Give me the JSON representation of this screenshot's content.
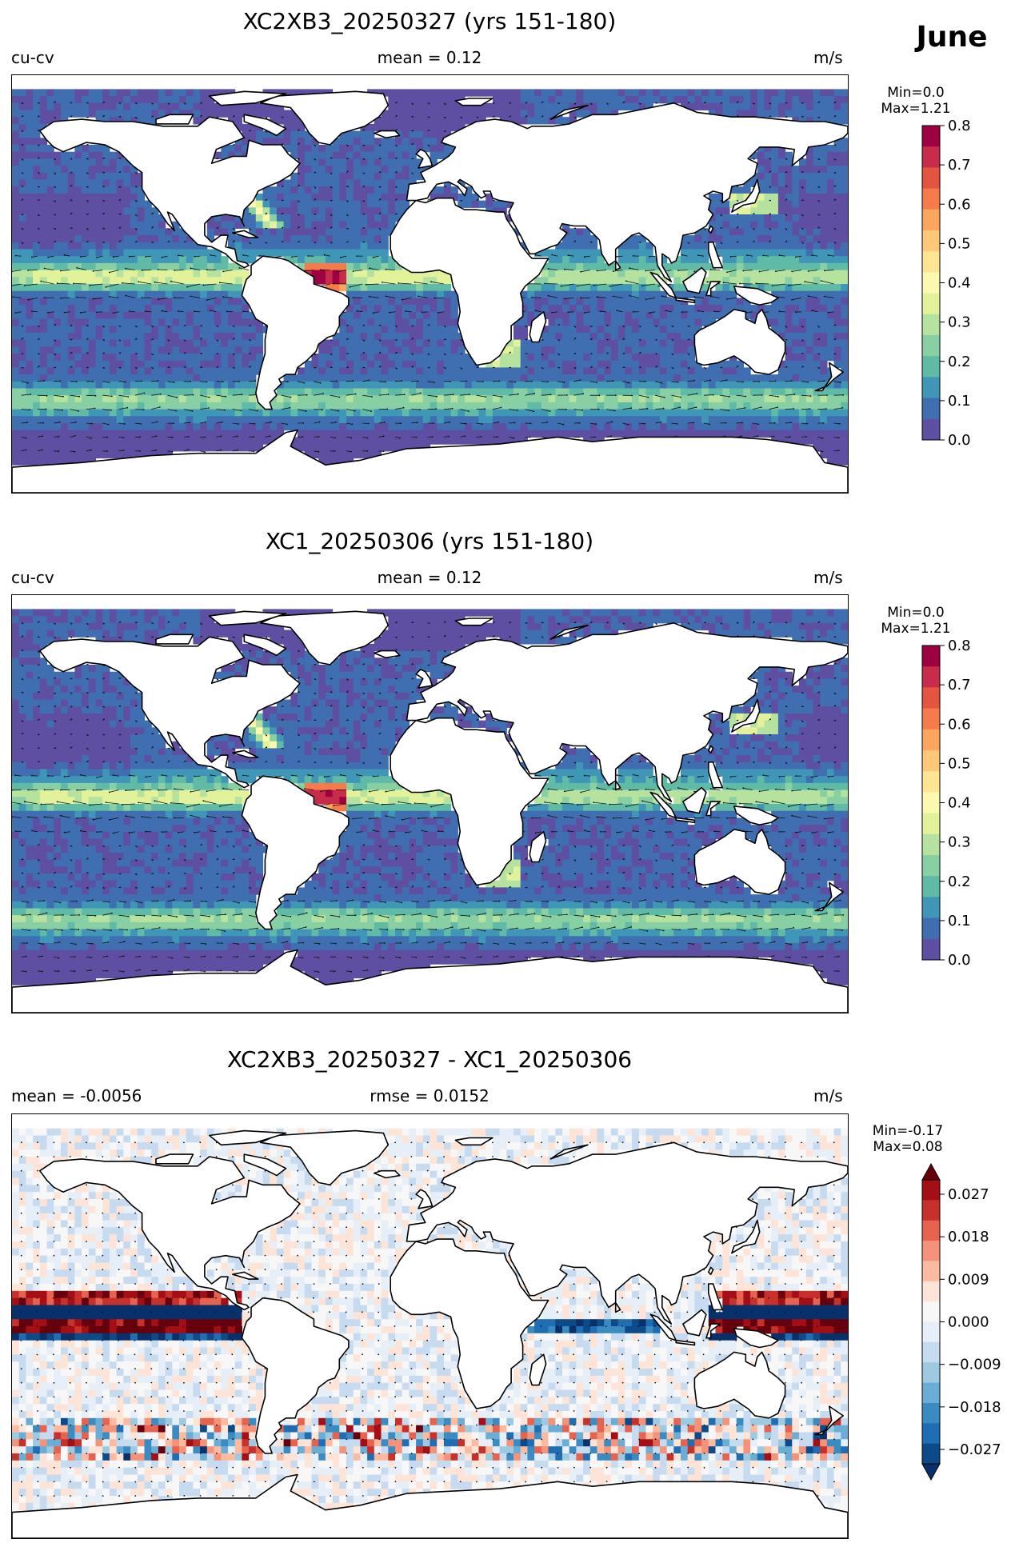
{
  "month": "June",
  "panels": [
    {
      "title": "XC2XB3_20250327 (yrs 151-180)",
      "left_label": "cu-cv",
      "center_label": "mean = 0.12",
      "right_label": "m/s",
      "minmax": {
        "min": "Min=0.0",
        "max": "Max=1.21"
      }
    },
    {
      "title": "XC1_20250306 (yrs 151-180)",
      "left_label": "cu-cv",
      "center_label": "mean = 0.12",
      "right_label": "m/s",
      "minmax": {
        "min": "Min=0.0",
        "max": "Max=1.21"
      }
    },
    {
      "title": "XC2XB3_20250327 - XC1_20250306",
      "left_label": "mean = -0.0056",
      "center_label": "rmse = 0.0152",
      "right_label": "m/s",
      "minmax": {
        "min": "Min=-0.17",
        "max": "Max=0.08"
      }
    }
  ],
  "colors": {
    "speed_scale": [
      "#5e4fa2",
      "#3f6fb0",
      "#3f96b7",
      "#5fbaa6",
      "#88cfa4",
      "#b6e29f",
      "#e1f29a",
      "#fbf8b0",
      "#fee593",
      "#fdc877",
      "#fca55d",
      "#f57c4a",
      "#e3553f",
      "#c92c4a",
      "#9e0142"
    ],
    "diff_scale": [
      "#08306b",
      "#0d4a8a",
      "#1f6eb3",
      "#3a8bc2",
      "#6aaed6",
      "#9ecae1",
      "#c6dbef",
      "#e6eff7",
      "#f7f7f7",
      "#fde4d6",
      "#fcbba1",
      "#f4937a",
      "#e5634f",
      "#c8302b",
      "#a30f15",
      "#67000d"
    ],
    "land": "#ffffff",
    "coast": "#000000"
  },
  "chart_data": [
    {
      "type": "heatmap",
      "title": "XC2XB3_20250327 (yrs 151-180)",
      "field": "cu-cv",
      "units": "m/s",
      "mean": 0.12,
      "min": 0.0,
      "max": 1.21,
      "colorbar": {
        "range": [
          0.0,
          0.8
        ],
        "ticks": [
          "0.0",
          "0.1",
          "0.2",
          "0.3",
          "0.4",
          "0.5",
          "0.6",
          "0.7",
          "0.8"
        ],
        "extend": "neither"
      },
      "overlay": "velocity-vectors",
      "projection": "equirectangular"
    },
    {
      "type": "heatmap",
      "title": "XC1_20250306 (yrs 151-180)",
      "field": "cu-cv",
      "units": "m/s",
      "mean": 0.12,
      "min": 0.0,
      "max": 1.21,
      "colorbar": {
        "range": [
          0.0,
          0.8
        ],
        "ticks": [
          "0.0",
          "0.1",
          "0.2",
          "0.3",
          "0.4",
          "0.5",
          "0.6",
          "0.7",
          "0.8"
        ],
        "extend": "neither"
      },
      "overlay": "velocity-vectors",
      "projection": "equirectangular"
    },
    {
      "type": "heatmap",
      "title": "XC2XB3_20250327 - XC1_20250306",
      "units": "m/s",
      "mean": -0.0056,
      "rmse": 0.0152,
      "min": -0.17,
      "max": 0.08,
      "colorbar": {
        "range": [
          -0.027,
          0.027
        ],
        "ticks": [
          "−0.027",
          "−0.018",
          "−0.009",
          "0.000",
          "0.009",
          "0.018",
          "0.027"
        ],
        "extend": "both"
      },
      "overlay": "velocity-vectors",
      "projection": "equirectangular"
    }
  ]
}
